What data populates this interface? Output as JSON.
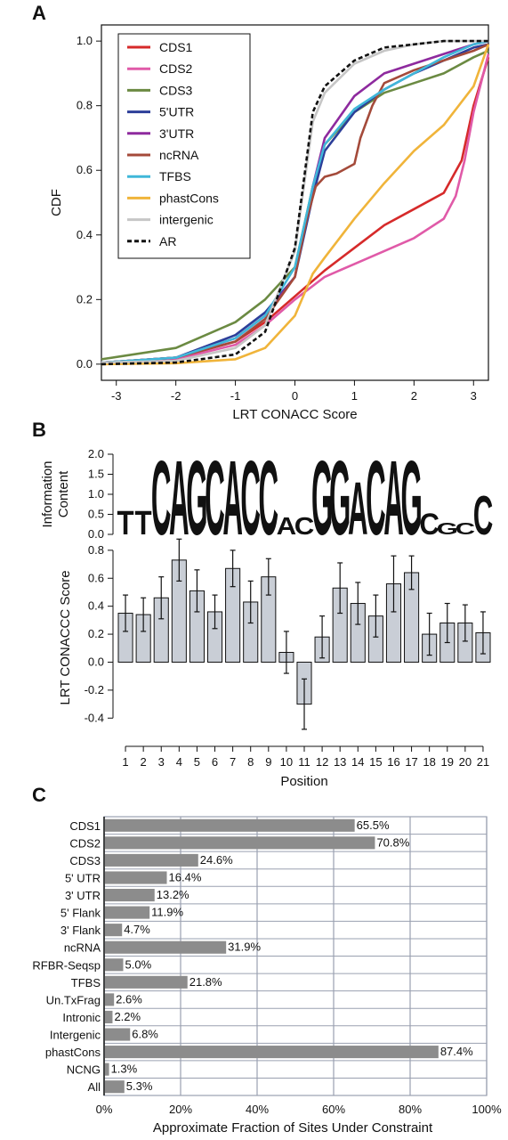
{
  "panels": [
    {
      "label": "A"
    },
    {
      "label": "B"
    },
    {
      "label": "C"
    }
  ],
  "chart_data": [
    {
      "type": "line",
      "panel": "A",
      "xlabel": "LRT CONACC Score",
      "ylabel": "CDF",
      "xlim": [
        -3.25,
        3.25
      ],
      "ylim": [
        -0.05,
        1.05
      ],
      "xticks": [
        "-3",
        "-2",
        "-1",
        "0",
        "1",
        "2",
        "3"
      ],
      "yticks": [
        "0.0",
        "0.2",
        "0.4",
        "0.6",
        "0.8",
        "1.0"
      ],
      "legend_position": "top-left",
      "series": [
        {
          "name": "CDS1",
          "color": "#d62a2a",
          "dash": false,
          "x": [
            -3.25,
            -2,
            -1,
            -0.5,
            0,
            0.5,
            1,
            1.5,
            2,
            2.5,
            2.8,
            3,
            3.25
          ],
          "y": [
            0.005,
            0.02,
            0.07,
            0.13,
            0.21,
            0.29,
            0.36,
            0.43,
            0.48,
            0.53,
            0.63,
            0.8,
            0.95
          ]
        },
        {
          "name": "CDS2",
          "color": "#e05aa8",
          "dash": false,
          "x": [
            -3.25,
            -2,
            -1,
            -0.5,
            0,
            0.5,
            1,
            1.5,
            2,
            2.5,
            2.7,
            2.85,
            3,
            3.25
          ],
          "y": [
            0.005,
            0.015,
            0.06,
            0.12,
            0.2,
            0.27,
            0.31,
            0.35,
            0.39,
            0.45,
            0.52,
            0.63,
            0.78,
            0.96
          ]
        },
        {
          "name": "CDS3",
          "color": "#6b8a42",
          "dash": false,
          "x": [
            -3.25,
            -2,
            -1,
            -0.5,
            0,
            0.3,
            0.5,
            1,
            1.5,
            2,
            2.5,
            3,
            3.25
          ],
          "y": [
            0.015,
            0.05,
            0.13,
            0.2,
            0.3,
            0.55,
            0.68,
            0.78,
            0.84,
            0.87,
            0.9,
            0.95,
            0.97
          ]
        },
        {
          "name": "5'UTR",
          "color": "#2c3e99",
          "dash": false,
          "x": [
            -3.25,
            -2,
            -1,
            -0.5,
            0,
            0.3,
            0.5,
            1,
            1.5,
            2,
            2.5,
            3,
            3.25
          ],
          "y": [
            0.005,
            0.02,
            0.09,
            0.16,
            0.27,
            0.52,
            0.66,
            0.78,
            0.85,
            0.9,
            0.94,
            0.98,
            0.99
          ]
        },
        {
          "name": "3'UTR",
          "color": "#8e2a9e",
          "dash": false,
          "x": [
            -3.25,
            -2,
            -1,
            -0.5,
            0,
            0.3,
            0.5,
            1,
            1.5,
            2,
            2.5,
            3,
            3.25
          ],
          "y": [
            0.005,
            0.02,
            0.08,
            0.15,
            0.27,
            0.55,
            0.7,
            0.83,
            0.9,
            0.93,
            0.96,
            0.99,
            1.0
          ]
        },
        {
          "name": "ncRNA",
          "color": "#a44a3a",
          "dash": false,
          "x": [
            -3.25,
            -2,
            -1,
            -0.5,
            0,
            0.2,
            0.35,
            0.5,
            0.7,
            1,
            1.1,
            1.3,
            1.5,
            2,
            2.5,
            3,
            3.25
          ],
          "y": [
            0.005,
            0.02,
            0.07,
            0.14,
            0.27,
            0.45,
            0.55,
            0.58,
            0.59,
            0.62,
            0.7,
            0.8,
            0.87,
            0.91,
            0.94,
            0.97,
            0.99
          ]
        },
        {
          "name": "TFBS",
          "color": "#40b7d9",
          "dash": false,
          "x": [
            -3.25,
            -2,
            -1,
            -0.5,
            0,
            0.3,
            0.5,
            1,
            1.5,
            2,
            2.5,
            3,
            3.25
          ],
          "y": [
            0.005,
            0.02,
            0.08,
            0.15,
            0.3,
            0.55,
            0.68,
            0.79,
            0.85,
            0.9,
            0.95,
            0.99,
            1.0
          ]
        },
        {
          "name": "phastCons",
          "color": "#f0b43a",
          "dash": false,
          "x": [
            -3.25,
            -2,
            -1,
            -0.5,
            0,
            0.3,
            0.5,
            1,
            1.5,
            2,
            2.5,
            3,
            3.25
          ],
          "y": [
            0.0,
            0.003,
            0.015,
            0.05,
            0.15,
            0.28,
            0.33,
            0.45,
            0.56,
            0.66,
            0.74,
            0.86,
            0.99
          ]
        },
        {
          "name": "intergenic",
          "color": "#c6c6c6",
          "dash": false,
          "x": [
            -3.25,
            -2,
            -1,
            -0.5,
            0,
            0.3,
            0.5,
            1,
            1.5,
            2,
            2.5,
            3,
            3.25
          ],
          "y": [
            0.005,
            0.01,
            0.05,
            0.12,
            0.35,
            0.75,
            0.84,
            0.93,
            0.97,
            0.99,
            1.0,
            1.0,
            1.0
          ]
        },
        {
          "name": "AR",
          "color": "#111111",
          "dash": true,
          "x": [
            -3.25,
            -2,
            -1,
            -0.5,
            0,
            0.3,
            0.5,
            1,
            1.5,
            2,
            2.5,
            3,
            3.25
          ],
          "y": [
            0.0,
            0.005,
            0.03,
            0.1,
            0.36,
            0.78,
            0.86,
            0.94,
            0.98,
            0.99,
            1.0,
            1.0,
            1.0
          ]
        }
      ]
    },
    {
      "type": "bar",
      "panel": "B",
      "xlabel": "Position",
      "ylabel": "LRT CONACCC Score",
      "logo_ylabel": "Information Content",
      "logo_yticks": [
        "0.0",
        "0.5",
        "1.0",
        "1.5",
        "2.0"
      ],
      "ylim": [
        -0.5,
        0.85
      ],
      "yticks": [
        "-0.4",
        "-0.2",
        "0.0",
        "0.2",
        "0.4",
        "0.6",
        "0.8"
      ],
      "categories": [
        "1",
        "2",
        "3",
        "4",
        "5",
        "6",
        "7",
        "8",
        "9",
        "10",
        "11",
        "12",
        "13",
        "14",
        "15",
        "16",
        "17",
        "18",
        "19",
        "20",
        "21"
      ],
      "values": [
        0.35,
        0.34,
        0.46,
        0.73,
        0.51,
        0.36,
        0.67,
        0.43,
        0.61,
        0.07,
        -0.3,
        0.18,
        0.53,
        0.42,
        0.33,
        0.56,
        0.64,
        0.2,
        0.28,
        0.28,
        0.21
      ],
      "errors": [
        0.13,
        0.12,
        0.15,
        0.15,
        0.15,
        0.12,
        0.13,
        0.15,
        0.13,
        0.15,
        0.18,
        0.15,
        0.18,
        0.15,
        0.15,
        0.2,
        0.12,
        0.15,
        0.14,
        0.13,
        0.15
      ],
      "bar_color": "#c9ced6",
      "logo": [
        {
          "letter": "T",
          "bits": 0.6
        },
        {
          "letter": "T",
          "bits": 0.6
        },
        {
          "letter": "C",
          "bits": 1.9
        },
        {
          "letter": "A",
          "bits": 1.9
        },
        {
          "letter": "G",
          "bits": 1.9
        },
        {
          "letter": "C",
          "bits": 1.9
        },
        {
          "letter": "A",
          "bits": 1.9
        },
        {
          "letter": "C",
          "bits": 1.9
        },
        {
          "letter": "C",
          "bits": 1.9
        },
        {
          "letter": "A",
          "bits": 0.45
        },
        {
          "letter": "C",
          "bits": 0.45
        },
        {
          "letter": "G",
          "bits": 1.9
        },
        {
          "letter": "G",
          "bits": 1.9
        },
        {
          "letter": "A",
          "bits": 1.35
        },
        {
          "letter": "C",
          "bits": 1.9
        },
        {
          "letter": "A",
          "bits": 1.9
        },
        {
          "letter": "G",
          "bits": 1.9
        },
        {
          "letter": "C",
          "bits": 0.55
        },
        {
          "letter": "G",
          "bits": 0.3
        },
        {
          "letter": "C",
          "bits": 0.3
        },
        {
          "letter": "C",
          "bits": 1.0
        }
      ],
      "logo_colors": {
        "A": "#3aa43a",
        "C": "#2a3d9e",
        "G": "#f0a82a",
        "T": "#d42a2a"
      }
    },
    {
      "type": "bar",
      "orientation": "horizontal",
      "panel": "C",
      "xlabel": "Approximate Fraction of Sites Under Constraint",
      "xticks": [
        "0%",
        "20%",
        "40%",
        "60%",
        "80%",
        "100%"
      ],
      "xlim": [
        0,
        100
      ],
      "categories": [
        "CDS1",
        "CDS2",
        "CDS3",
        "5' UTR",
        "3' UTR",
        "5' Flank",
        "3' Flank",
        "ncRNA",
        "RFBR-Seqsp",
        "TFBS",
        "Un.TxFrag",
        "Intronic",
        "Intergenic",
        "phastCons",
        "NCNG",
        "All"
      ],
      "values": [
        65.5,
        70.8,
        24.6,
        16.4,
        13.2,
        11.9,
        4.7,
        31.9,
        5.0,
        21.8,
        2.6,
        2.2,
        6.8,
        87.4,
        1.3,
        5.3
      ],
      "labels": [
        "65.5%",
        "70.8%",
        "24.6%",
        "16.4%",
        "13.2%",
        "11.9%",
        "4.7%",
        "31.9%",
        "5.0%",
        "21.8%",
        "2.6%",
        "2.2%",
        "6.8%",
        "87.4%",
        "1.3%",
        "5.3%"
      ],
      "bar_color": "#8c8c8c",
      "grid": true
    }
  ]
}
